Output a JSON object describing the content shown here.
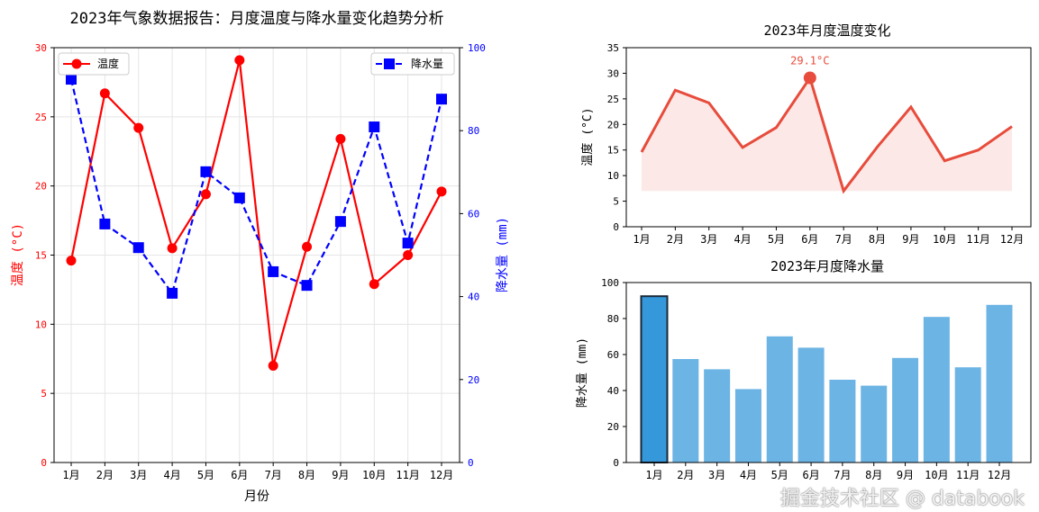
{
  "watermark": "掘金技术社区 @ databook",
  "chart_data": [
    {
      "type": "line",
      "title": "2023年气象数据报告：月度温度与降水量变化趋势分析",
      "xlabel": "月份",
      "categories": [
        "1月",
        "2月",
        "3月",
        "4月",
        "5月",
        "6月",
        "7月",
        "8月",
        "9月",
        "10月",
        "11月",
        "12月"
      ],
      "y_left": {
        "label": "温度 (°C)",
        "lim": [
          0,
          30
        ],
        "ticks": [
          0,
          5,
          10,
          15,
          20,
          25,
          30
        ],
        "color": "#ff0000"
      },
      "y_right": {
        "label": "降水量 (mm)",
        "lim": [
          0,
          100
        ],
        "ticks": [
          0,
          20,
          40,
          60,
          80,
          100
        ],
        "color": "#0000ff"
      },
      "grid": true,
      "series": [
        {
          "name": "温度",
          "axis": "left",
          "color": "#ff0000",
          "marker": "circle",
          "style": "solid",
          "legend": "top-left",
          "values": [
            14.6,
            26.7,
            24.2,
            15.5,
            19.4,
            29.1,
            7.0,
            15.6,
            23.4,
            12.9,
            15.0,
            19.6
          ]
        },
        {
          "name": "降水量",
          "axis": "right",
          "color": "#0000ff",
          "marker": "square",
          "style": "dashed",
          "legend": "top-right",
          "values": [
            92.4,
            57.5,
            51.8,
            40.8,
            70.1,
            63.8,
            46.0,
            42.7,
            58.1,
            80.9,
            52.9,
            87.6
          ]
        }
      ]
    },
    {
      "type": "area",
      "title": "2023年月度温度变化",
      "ylabel": "温度 (°C)",
      "ylim": [
        0,
        35
      ],
      "yticks": [
        0,
        5,
        10,
        15,
        20,
        25,
        30,
        35
      ],
      "categories": [
        "1月",
        "2月",
        "3月",
        "4月",
        "5月",
        "6月",
        "7月",
        "8月",
        "9月",
        "10月",
        "11月",
        "12月"
      ],
      "values": [
        14.6,
        26.7,
        24.2,
        15.5,
        19.4,
        29.1,
        7.0,
        15.6,
        23.4,
        12.9,
        15.0,
        19.6
      ],
      "color": "#e74c3c",
      "annotation": {
        "text": "29.1°C",
        "month": "6月"
      }
    },
    {
      "type": "bar",
      "title": "2023年月度降水量",
      "ylabel": "降水量 (mm)",
      "ylim": [
        0,
        100
      ],
      "yticks": [
        0,
        20,
        40,
        60,
        80,
        100
      ],
      "categories": [
        "1月",
        "2月",
        "3月",
        "4月",
        "5月",
        "6月",
        "7月",
        "8月",
        "9月",
        "10月",
        "11月",
        "12月"
      ],
      "values": [
        92.4,
        57.5,
        51.8,
        40.8,
        70.1,
        63.8,
        46.0,
        42.7,
        58.1,
        80.9,
        52.9,
        87.6
      ],
      "color": "#6cb4e4",
      "highlight_color": "#3498db",
      "highlight": "1月"
    }
  ]
}
